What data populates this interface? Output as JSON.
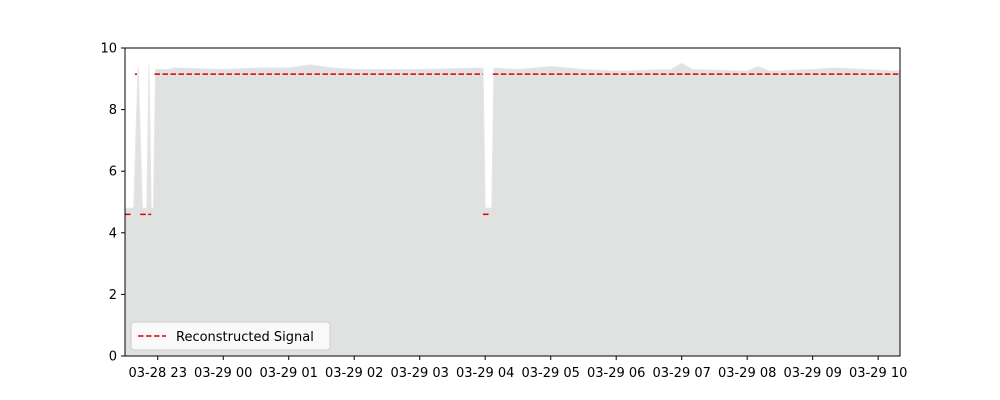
{
  "chart_data": {
    "type": "area",
    "title": "",
    "xlabel": "",
    "ylabel": "",
    "x_range": [
      "03-28 22:30",
      "03-29 10:20"
    ],
    "ylim": [
      0,
      10
    ],
    "grid": false,
    "legend_position": "bottom-left",
    "colors": {
      "area_fill": "#e0e2e2",
      "area_edge": "#e6e6e6",
      "signal": "#dd0000",
      "axis": "#000000"
    },
    "x_ticks": [
      {
        "time": "03-28 23:00",
        "label": "03-28 23"
      },
      {
        "time": "03-29 00:00",
        "label": "03-29 00"
      },
      {
        "time": "03-29 01:00",
        "label": "03-29 01"
      },
      {
        "time": "03-29 02:00",
        "label": "03-29 02"
      },
      {
        "time": "03-29 03:00",
        "label": "03-29 03"
      },
      {
        "time": "03-29 04:00",
        "label": "03-29 04"
      },
      {
        "time": "03-29 05:00",
        "label": "03-29 05"
      },
      {
        "time": "03-29 06:00",
        "label": "03-29 06"
      },
      {
        "time": "03-29 07:00",
        "label": "03-29 07"
      },
      {
        "time": "03-29 08:00",
        "label": "03-29 08"
      },
      {
        "time": "03-29 09:00",
        "label": "03-29 09"
      },
      {
        "time": "03-29 10:00",
        "label": "03-29 10"
      }
    ],
    "y_ticks": [
      {
        "value": 0,
        "label": "0"
      },
      {
        "value": 2,
        "label": "2"
      },
      {
        "value": 4,
        "label": "4"
      },
      {
        "value": 6,
        "label": "6"
      },
      {
        "value": 8,
        "label": "8"
      },
      {
        "value": 10,
        "label": "10"
      }
    ],
    "series": [
      {
        "role": "area",
        "points": [
          {
            "t": "03-28 22:30",
            "y": 4.8
          },
          {
            "t": "03-28 22:38",
            "y": 4.8
          },
          {
            "t": "03-28 22:42",
            "y": 9.4
          },
          {
            "t": "03-28 22:46",
            "y": 4.8
          },
          {
            "t": "03-28 22:50",
            "y": 4.8
          },
          {
            "t": "03-28 22:52",
            "y": 9.45
          },
          {
            "t": "03-28 22:54",
            "y": 4.8
          },
          {
            "t": "03-28 22:56",
            "y": 4.8
          },
          {
            "t": "03-28 22:58",
            "y": 9.3
          },
          {
            "t": "03-28 23:10",
            "y": 9.3
          },
          {
            "t": "03-28 23:15",
            "y": 9.35
          },
          {
            "t": "03-29 00:00",
            "y": 9.3
          },
          {
            "t": "03-29 00:30",
            "y": 9.35
          },
          {
            "t": "03-29 01:00",
            "y": 9.35
          },
          {
            "t": "03-29 01:20",
            "y": 9.45
          },
          {
            "t": "03-29 01:40",
            "y": 9.35
          },
          {
            "t": "03-29 02:00",
            "y": 9.3
          },
          {
            "t": "03-29 03:00",
            "y": 9.3
          },
          {
            "t": "03-29 03:58",
            "y": 9.35
          },
          {
            "t": "03-29 04:00",
            "y": 4.8
          },
          {
            "t": "03-29 04:06",
            "y": 4.8
          },
          {
            "t": "03-29 04:08",
            "y": 9.35
          },
          {
            "t": "03-29 04:30",
            "y": 9.3
          },
          {
            "t": "03-29 05:00",
            "y": 9.4
          },
          {
            "t": "03-29 05:30",
            "y": 9.3
          },
          {
            "t": "03-29 06:00",
            "y": 9.25
          },
          {
            "t": "03-29 06:50",
            "y": 9.3
          },
          {
            "t": "03-29 07:00",
            "y": 9.5
          },
          {
            "t": "03-29 07:10",
            "y": 9.3
          },
          {
            "t": "03-29 08:00",
            "y": 9.25
          },
          {
            "t": "03-29 08:10",
            "y": 9.4
          },
          {
            "t": "03-29 08:20",
            "y": 9.25
          },
          {
            "t": "03-29 09:00",
            "y": 9.3
          },
          {
            "t": "03-29 09:20",
            "y": 9.35
          },
          {
            "t": "03-29 10:20",
            "y": 9.25
          }
        ]
      },
      {
        "name": "Reconstructed Signal",
        "role": "line",
        "style": "dashed",
        "segments": [
          {
            "t_start": "03-28 22:30",
            "t_end": "03-28 22:37",
            "y": 4.6
          },
          {
            "t_start": "03-28 22:39",
            "t_end": "03-28 22:41",
            "y": 9.15
          },
          {
            "t_start": "03-28 22:44",
            "t_end": "03-28 22:54",
            "y": 4.6
          },
          {
            "t_start": "03-28 22:57",
            "t_end": "03-29 03:58",
            "y": 9.15
          },
          {
            "t_start": "03-29 03:58",
            "t_end": "03-29 04:04",
            "y": 4.6
          },
          {
            "t_start": "03-29 04:07",
            "t_end": "03-29 10:20",
            "y": 9.15
          }
        ]
      }
    ]
  }
}
